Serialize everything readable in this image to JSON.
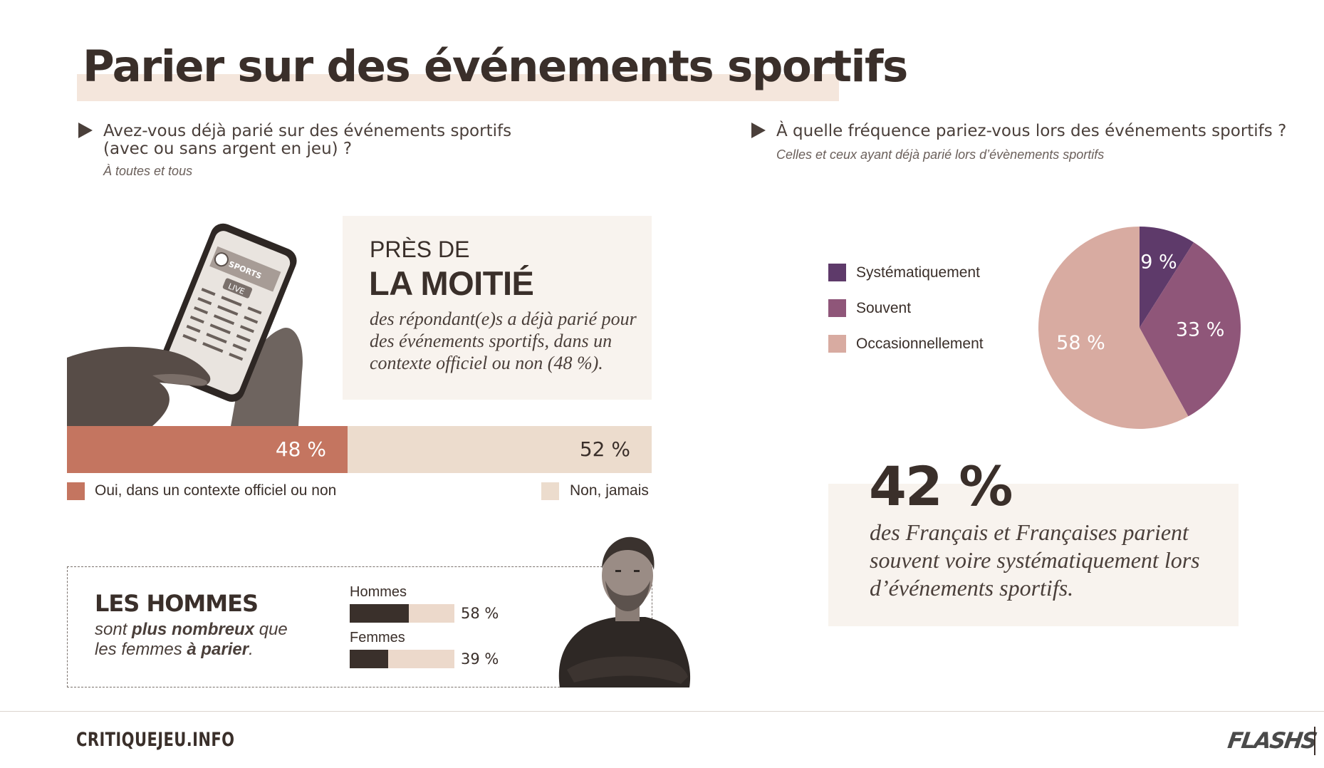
{
  "title": "Parier sur des événements sportifs",
  "left": {
    "question_line1": "Avez-vous déjà parié sur des événements sportifs",
    "question_line2": "(avec ou sans argent en jeu) ?",
    "subtitle": "À toutes et tous",
    "highlight": {
      "pre": "PRÈS DE",
      "main": "LA MOITIÉ",
      "description": "des répondant(e)s a déjà parié pour des événements sportifs, dans un contexte officiel ou non (48 %)."
    },
    "phone_screen": {
      "brand": "SPORTS",
      "badge": "LIVE"
    },
    "legend": {
      "yes": "Oui, dans un contexte officiel ou non",
      "no": "Non, jamais"
    },
    "gender": {
      "title": "LES HOMMES",
      "desc_part1": "sont ",
      "desc_bold1": "plus nombreux",
      "desc_part2": " que",
      "desc_part3": "les femmes ",
      "desc_bold2": "à parier",
      "desc_end": "."
    }
  },
  "right": {
    "question": "À quelle fréquence pariez-vous lors des événements sportifs ?",
    "subtitle": "Celles et ceux ayant déjà parié lors d’évènements sportifs",
    "stat": {
      "value": "42 %",
      "description": "des Français et Françaises parient souvent voire systématiquement lors d’événements sportifs."
    }
  },
  "footer": {
    "site": "CRITIQUEJEU.INFO",
    "brand": "FLASHS"
  },
  "colors": {
    "bar_yes": "#c47560",
    "bar_no": "#ecdccd",
    "systematic": "#5e3a6a",
    "often": "#8f5679",
    "occasional": "#d8aba1",
    "gender_fill": "#3a302b",
    "gender_track": "#ecd9cb"
  },
  "chart_data": [
    {
      "type": "bar",
      "orientation": "horizontal-stacked",
      "categories": [
        "Oui, dans un contexte officiel ou non",
        "Non, jamais"
      ],
      "values": [
        48,
        52
      ],
      "labels": [
        "48 %",
        "52 %"
      ],
      "unit": "%"
    },
    {
      "type": "bar",
      "orientation": "horizontal",
      "categories": [
        "Hommes",
        "Femmes"
      ],
      "values": [
        58,
        39
      ],
      "labels": [
        "58 %",
        "39 %"
      ],
      "unit": "%"
    },
    {
      "type": "pie",
      "categories": [
        "Systématiquement",
        "Souvent",
        "Occasionnellement"
      ],
      "values": [
        9,
        33,
        58
      ],
      "labels": [
        "9 %",
        "33 %",
        "58 %"
      ],
      "legend_position": "left",
      "unit": "%"
    }
  ]
}
